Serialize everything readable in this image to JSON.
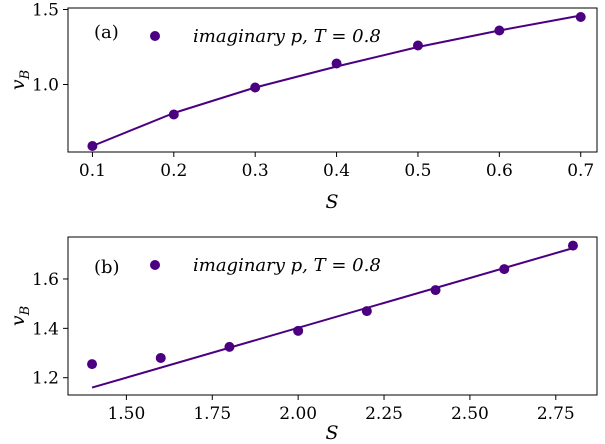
{
  "colors": {
    "accent": "#4b0082",
    "axis": "#000000"
  },
  "chart_data": [
    {
      "type": "scatter",
      "panel_label": "(a)",
      "legend": {
        "label_text": "imaginary p, T = 0.8",
        "placement": "top-left"
      },
      "xlabel": "S",
      "ylabel": "v_B",
      "xlim": [
        0.07,
        0.72
      ],
      "ylim": [
        0.55,
        1.51
      ],
      "xticks": [
        0.1,
        0.2,
        0.3,
        0.4,
        0.5,
        0.6,
        0.7
      ],
      "xtick_labels": [
        "0.1",
        "0.2",
        "0.3",
        "0.4",
        "0.5",
        "0.6",
        "0.7"
      ],
      "yticks": [
        1.0,
        1.5
      ],
      "ytick_labels": [
        "1.0",
        "1.5"
      ],
      "grid": false,
      "series": [
        {
          "name": "imaginary p, T = 0.8",
          "kind": "scatter",
          "x": [
            0.1,
            0.2,
            0.3,
            0.4,
            0.5,
            0.6,
            0.7
          ],
          "y": [
            0.59,
            0.8,
            0.98,
            1.14,
            1.26,
            1.36,
            1.45
          ]
        },
        {
          "kind": "line",
          "x": [
            0.1,
            0.2,
            0.3,
            0.4,
            0.5,
            0.6,
            0.7
          ],
          "y": [
            0.59,
            0.81,
            0.98,
            1.12,
            1.25,
            1.36,
            1.46
          ]
        }
      ]
    },
    {
      "type": "scatter",
      "panel_label": "(b)",
      "legend": {
        "label_text": "imaginary p, T = 0.8",
        "placement": "top-left"
      },
      "xlabel": "S",
      "ylabel": "v_B",
      "xlim": [
        1.33,
        2.87
      ],
      "ylim": [
        1.13,
        1.77
      ],
      "xticks": [
        1.5,
        1.75,
        2.0,
        2.25,
        2.5,
        2.75
      ],
      "xtick_labels": [
        "1.50",
        "1.75",
        "2.00",
        "2.25",
        "2.50",
        "2.75"
      ],
      "yticks": [
        1.2,
        1.4,
        1.6
      ],
      "ytick_labels": [
        "1.2",
        "1.4",
        "1.6"
      ],
      "grid": false,
      "series": [
        {
          "name": "imaginary p, T = 0.8",
          "kind": "scatter",
          "x": [
            1.4,
            1.6,
            1.8,
            2.0,
            2.2,
            2.4,
            2.6,
            2.8
          ],
          "y": [
            1.255,
            1.28,
            1.325,
            1.39,
            1.47,
            1.555,
            1.64,
            1.735
          ]
        },
        {
          "kind": "line",
          "x": [
            1.4,
            2.8
          ],
          "y": [
            1.16,
            1.725
          ]
        }
      ]
    }
  ]
}
